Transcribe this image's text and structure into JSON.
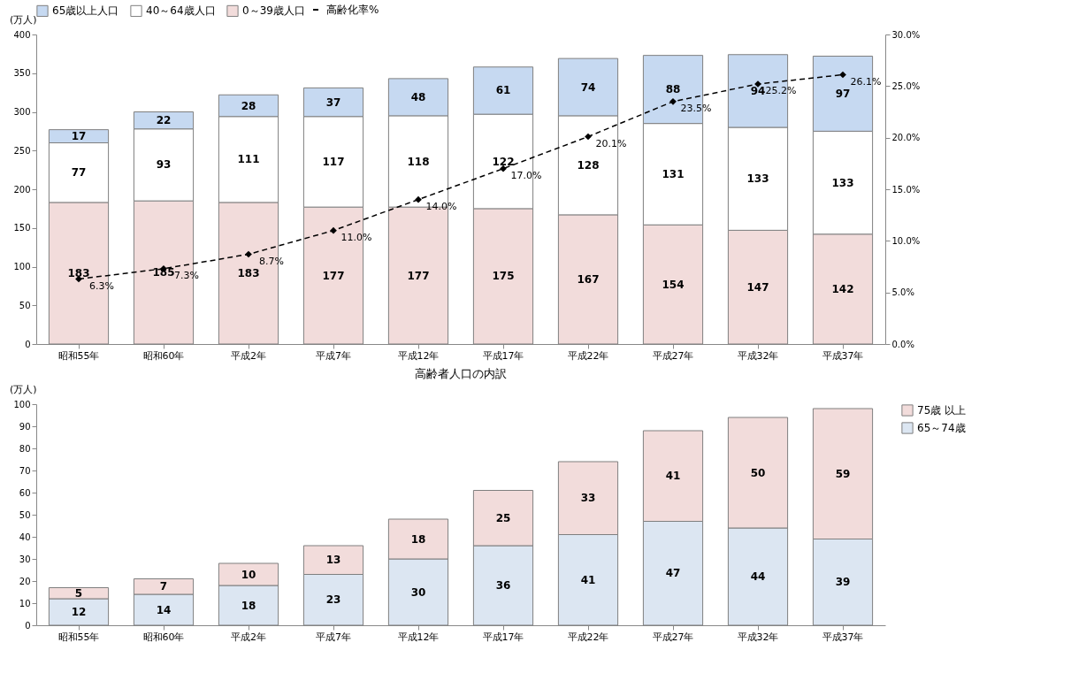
{
  "chart_data": [
    {
      "type": "bar",
      "stacked": true,
      "ylabel": "(万人)",
      "categories": [
        "昭和55年",
        "昭和60年",
        "平成2年",
        "平成7年",
        "平成12年",
        "平成17年",
        "平成22年",
        "平成27年",
        "平成32年",
        "平成37年"
      ],
      "series": [
        {
          "name": "0～39歳人口",
          "color": "#f2dcdb",
          "values": [
            183,
            185,
            183,
            177,
            177,
            175,
            167,
            154,
            147,
            142
          ]
        },
        {
          "name": "40～64歳人口",
          "color": "#ffffff",
          "values": [
            77,
            93,
            111,
            117,
            118,
            122,
            128,
            131,
            133,
            133
          ]
        },
        {
          "name": "65歳以上人口",
          "color": "#c6d9f1",
          "values": [
            17,
            22,
            28,
            37,
            48,
            61,
            74,
            88,
            94,
            97
          ]
        },
        {
          "name": "高齢化率%",
          "type": "line",
          "axis": "y2",
          "color": "#000000",
          "marker": "diamond",
          "line_style": "dashed",
          "values": [
            6.3,
            7.3,
            8.7,
            11.0,
            14.0,
            17.0,
            20.1,
            23.5,
            25.2,
            26.1
          ],
          "value_labels": [
            "6.3%",
            "7.3%",
            "8.7%",
            "11.0%",
            "14.0%",
            "17.0%",
            "20.1%",
            "23.5%",
            "25.2%",
            "26.1%"
          ]
        }
      ],
      "data_labels": true,
      "ylim": [
        0,
        400
      ],
      "yticks": [
        0,
        50,
        100,
        150,
        200,
        250,
        300,
        350,
        400
      ],
      "y2lim": [
        0,
        30
      ],
      "y2ticks": [
        {
          "value": 0,
          "label": "0.0%"
        },
        {
          "value": 5,
          "label": "5.0%"
        },
        {
          "value": 10,
          "label": "10.0%"
        },
        {
          "value": 15,
          "label": "15.0%"
        },
        {
          "value": 20,
          "label": "20.0%"
        },
        {
          "value": 25,
          "label": "25.0%"
        },
        {
          "value": 30,
          "label": "30.0%"
        }
      ],
      "grid": false,
      "legend": "top"
    },
    {
      "type": "bar",
      "stacked": true,
      "title": "高齢者人口の内訳",
      "ylabel": "(万人)",
      "categories": [
        "昭和55年",
        "昭和60年",
        "平成2年",
        "平成7年",
        "平成12年",
        "平成17年",
        "平成22年",
        "平成27年",
        "平成32年",
        "平成37年"
      ],
      "series": [
        {
          "name": "65～74歳",
          "color": "#dce6f2",
          "values": [
            12,
            14,
            18,
            23,
            30,
            36,
            41,
            47,
            44,
            39
          ]
        },
        {
          "name": "75歳 以上",
          "color": "#f2dcdb",
          "values": [
            5,
            7,
            10,
            13,
            18,
            25,
            33,
            41,
            50,
            59
          ]
        }
      ],
      "data_labels": true,
      "ylim": [
        0,
        100
      ],
      "yticks": [
        0,
        10,
        20,
        30,
        40,
        50,
        60,
        70,
        80,
        90,
        100
      ],
      "grid": false,
      "legend": "right"
    }
  ]
}
